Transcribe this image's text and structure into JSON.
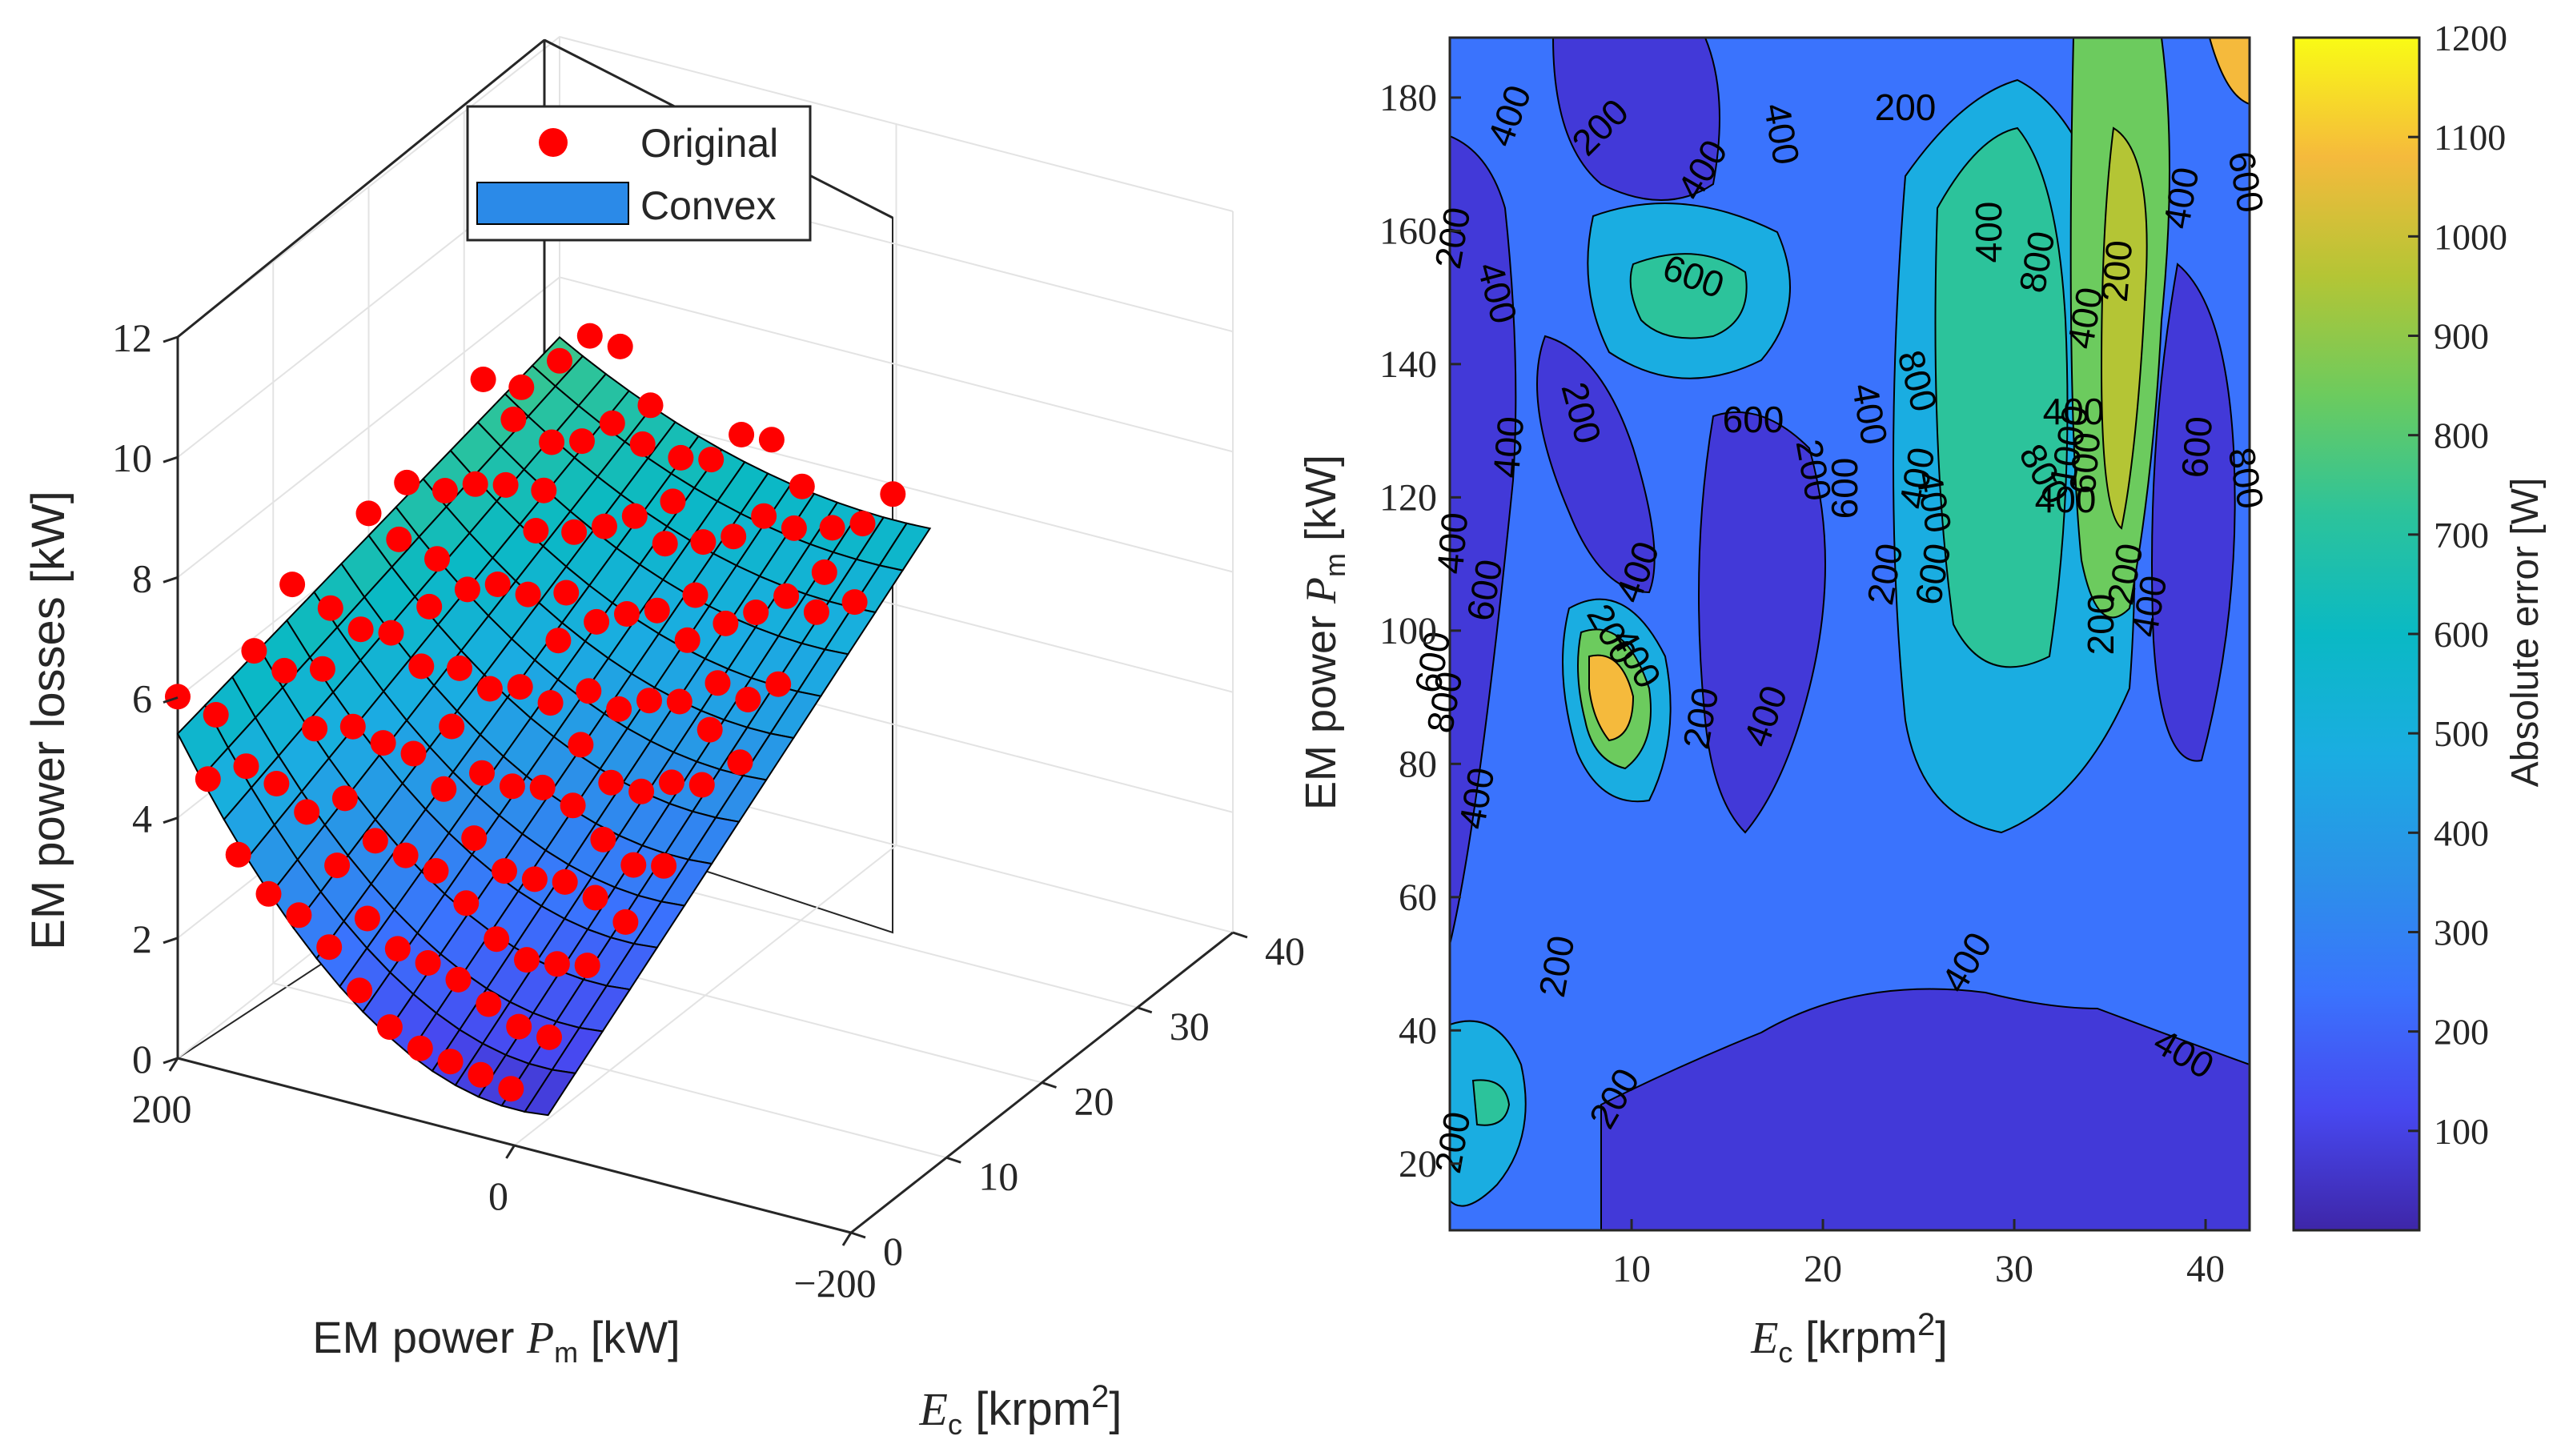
{
  "chart_data": [
    {
      "type": "scatter3d-surface",
      "zlabel": "EM power losses [kW]",
      "xlabel": {
        "prefix": "EM power ",
        "symbol": "P",
        "sub": "m",
        "suffix": " [kW]"
      },
      "ylabel": {
        "symbol": "E",
        "sub": "c",
        "suffix": " [krpm",
        "sup": "2",
        "close": "]"
      },
      "zticks": [
        "0",
        "2",
        "4",
        "6",
        "8",
        "10",
        "12"
      ],
      "xticks": [
        "200",
        "0",
        "−200"
      ],
      "yticks": [
        "0",
        "10",
        "20",
        "30",
        "40"
      ],
      "zlim": [
        0,
        12
      ],
      "xlim": [
        -200,
        200
      ],
      "ylim": [
        0,
        40
      ],
      "legend": {
        "position": "top",
        "entries": [
          {
            "label": "Original",
            "marker": "circle",
            "color": "#ff0000"
          },
          {
            "label": "Convex",
            "marker": "patch",
            "color": "#2b8ae8"
          }
        ]
      },
      "series": [
        {
          "name": "Original",
          "note": "measured loss points (red markers)"
        },
        {
          "name": "Convex",
          "note": "convex surface fit (parula shaded patch)"
        }
      ]
    },
    {
      "type": "contourf",
      "xlabel": {
        "symbol": "E",
        "sub": "c",
        "suffix": " [krpm",
        "sup": "2",
        "close": "]"
      },
      "ylabel": {
        "prefix": "EM power ",
        "symbol": "P",
        "sub": "m",
        "suffix": " [kW]"
      },
      "xticks": [
        "10",
        "20",
        "30",
        "40"
      ],
      "yticks": [
        "20",
        "40",
        "60",
        "80",
        "100",
        "120",
        "140",
        "160",
        "180"
      ],
      "xlim": [
        0.5,
        42.3
      ],
      "ylim": [
        10,
        189
      ],
      "colorbar": {
        "label": "Absolute error [W]",
        "ticks": [
          "100",
          "200",
          "300",
          "400",
          "500",
          "600",
          "700",
          "800",
          "900",
          "1000",
          "1100",
          "1200"
        ],
        "range": [
          0,
          1200
        ],
        "colormap": "parula"
      },
      "contour_labels": [
        "400",
        "200",
        "400",
        "400",
        "600",
        "200",
        "400",
        "200",
        "400",
        "400",
        "200",
        "400",
        "600",
        "800",
        "1000",
        "800",
        "600",
        "800",
        "400",
        "200",
        "400",
        "200",
        "600",
        "400",
        "600",
        "800",
        "400",
        "600",
        "600",
        "800",
        "200",
        "400",
        "400",
        "200",
        "400",
        "200",
        "400",
        "400",
        "200",
        "200",
        "400",
        "400",
        "200",
        "200",
        "400",
        "400",
        "400",
        "200",
        "600",
        "600"
      ]
    }
  ]
}
